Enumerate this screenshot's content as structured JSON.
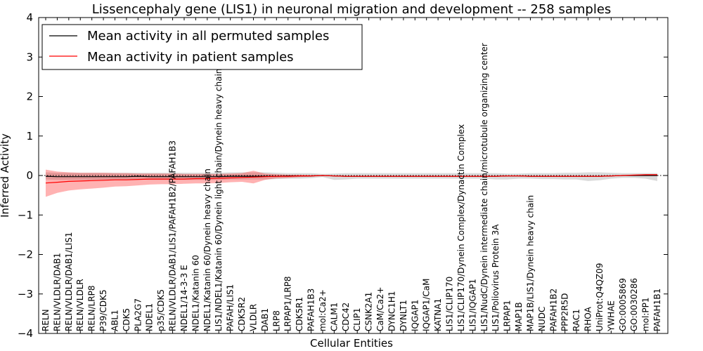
{
  "chart_data": {
    "type": "line",
    "title": "Lissencephaly gene (LIS1) in neuronal migration and development -- 258 samples",
    "xlabel": "Cellular Entities",
    "ylabel": "Inferred Activity",
    "ylim": [
      -4,
      4
    ],
    "yticks": [
      -4,
      -3,
      -2,
      -1,
      0,
      1,
      2,
      3,
      4
    ],
    "ytick_labels": [
      "−4",
      "−3",
      "−2",
      "−1",
      "0",
      "1",
      "2",
      "3",
      "4"
    ],
    "legend": {
      "position": "top-left",
      "entries": [
        {
          "label": "Mean activity in all permuted samples",
          "color": "#000000"
        },
        {
          "label": "Mean activity in patient samples",
          "color": "#ff0000"
        }
      ]
    },
    "categories": [
      "RELN",
      "RELN/VLDLR/DAB1",
      "RELN/VLDLR/DAB1/LIS1",
      "RELN/VLDLR",
      "RELN/LRP8",
      "P39/CDK5",
      "ABL1",
      "CDK5",
      "PLA2G7",
      "NDEL1",
      "p35/CDK5",
      "RELN/VLDLR/DAB1/LIS1/PAFAH1B2/PAFAH1B3",
      "NDEL1/14-3-3 E",
      "NDEL1/Katanin 60",
      "NDEL1/Katanin 60/Dynein heavy chain",
      "LIS1/NDEL1/Katanin 60/Dynein light chain/Dynein heavy chain",
      "PAFAH/LIS1",
      "CDK5R2",
      "VLDLR",
      "DAB1",
      "LRP8",
      "LRPAP1/LRP8",
      "CDK5R1",
      "PAFAH1B3",
      "mol:Ca2+",
      "CALM1",
      "CDC42",
      "CLIP1",
      "CSNK2A1",
      "CaM/Ca2+",
      "DYNC1H1",
      "DYNLT1",
      "IQGAP1",
      "IQGAP1/CaM",
      "KATNA1",
      "LIS1/CLIP170",
      "LIS1/CLIP170/Dynein Complex/Dynactin Complex",
      "LIS1/IQGAP1",
      "LIS1/NudC/Dynein intermediate chain/microtubule organizing center",
      "LIS1/Poliovirus Protein 3A",
      "LRPAP1",
      "MAP1B",
      "MAP1B/LIS1/Dynein heavy chain",
      "NUDC",
      "PAFAH1B2",
      "PPP2R5D",
      "RAC1",
      "RHOA",
      "UniProt:Q4QZ09",
      "YWHAE",
      "GO:0005869",
      "GO:0030286",
      "mol:PP1",
      "PAFAH1B1"
    ],
    "series": [
      {
        "name": "Mean activity in all permuted samples",
        "color": "#000000",
        "values": [
          -0.02,
          -0.03,
          -0.03,
          -0.03,
          -0.03,
          -0.03,
          -0.03,
          -0.03,
          -0.02,
          -0.03,
          -0.03,
          -0.03,
          -0.03,
          -0.03,
          -0.03,
          -0.03,
          -0.02,
          -0.02,
          -0.02,
          -0.02,
          -0.02,
          -0.01,
          -0.01,
          -0.01,
          0.0,
          -0.01,
          -0.02,
          -0.02,
          -0.02,
          -0.02,
          -0.02,
          -0.02,
          -0.02,
          -0.02,
          -0.02,
          -0.02,
          -0.02,
          -0.02,
          -0.02,
          -0.02,
          -0.01,
          -0.01,
          -0.02,
          -0.02,
          -0.02,
          -0.02,
          -0.02,
          -0.02,
          -0.02,
          -0.01,
          0.0,
          0.0,
          0.0,
          0.0
        ],
        "upper": [
          0.08,
          0.07,
          0.07,
          0.07,
          0.07,
          0.07,
          0.07,
          0.07,
          0.07,
          0.07,
          0.07,
          0.07,
          0.07,
          0.07,
          0.07,
          0.07,
          0.08,
          0.08,
          0.08,
          0.08,
          0.07,
          0.06,
          0.06,
          0.06,
          0.04,
          0.05,
          0.06,
          0.06,
          0.06,
          0.06,
          0.06,
          0.06,
          0.06,
          0.06,
          0.06,
          0.06,
          0.06,
          0.06,
          0.06,
          0.06,
          0.05,
          0.05,
          0.06,
          0.06,
          0.06,
          0.07,
          0.07,
          0.08,
          0.08,
          0.07,
          0.06,
          0.06,
          0.06,
          0.06
        ],
        "lower": [
          -0.1,
          -0.11,
          -0.11,
          -0.11,
          -0.11,
          -0.11,
          -0.11,
          -0.11,
          -0.1,
          -0.11,
          -0.11,
          -0.11,
          -0.11,
          -0.11,
          -0.11,
          -0.11,
          -0.1,
          -0.1,
          -0.1,
          -0.1,
          -0.09,
          -0.08,
          -0.08,
          -0.07,
          -0.04,
          -0.11,
          -0.1,
          -0.08,
          -0.08,
          -0.08,
          -0.08,
          -0.08,
          -0.08,
          -0.08,
          -0.08,
          -0.08,
          -0.08,
          -0.08,
          -0.08,
          -0.1,
          -0.1,
          -0.08,
          -0.08,
          -0.09,
          -0.09,
          -0.1,
          -0.1,
          -0.14,
          -0.12,
          -0.08,
          -0.06,
          -0.06,
          -0.08,
          -0.14
        ]
      },
      {
        "name": "Mean activity in patient samples",
        "color": "#ff0000",
        "values": [
          -0.19,
          -0.17,
          -0.15,
          -0.14,
          -0.13,
          -0.12,
          -0.11,
          -0.11,
          -0.1,
          -0.09,
          -0.09,
          -0.09,
          -0.09,
          -0.08,
          -0.08,
          -0.07,
          -0.06,
          -0.05,
          -0.04,
          -0.03,
          -0.02,
          -0.02,
          -0.01,
          -0.01,
          0.0,
          -0.01,
          -0.02,
          -0.02,
          -0.02,
          -0.02,
          -0.02,
          -0.02,
          -0.02,
          -0.02,
          -0.02,
          -0.02,
          -0.02,
          -0.02,
          -0.02,
          -0.02,
          -0.01,
          -0.01,
          -0.02,
          -0.02,
          -0.02,
          -0.02,
          -0.02,
          -0.02,
          -0.02,
          -0.01,
          0.0,
          0.01,
          0.02,
          0.02
        ],
        "upper": [
          0.15,
          0.1,
          0.08,
          0.07,
          0.07,
          0.07,
          0.06,
          0.06,
          0.05,
          0.05,
          0.05,
          0.05,
          0.04,
          0.04,
          0.04,
          0.04,
          0.05,
          0.06,
          0.12,
          0.05,
          0.03,
          0.02,
          0.02,
          0.01,
          0.01,
          0.0,
          -0.01,
          -0.01,
          -0.01,
          -0.01,
          -0.01,
          -0.01,
          -0.01,
          -0.01,
          -0.01,
          -0.01,
          -0.01,
          -0.01,
          -0.01,
          -0.01,
          0.0,
          0.0,
          -0.01,
          -0.01,
          -0.01,
          -0.01,
          -0.01,
          -0.01,
          -0.01,
          0.0,
          0.01,
          0.02,
          0.03,
          0.03
        ],
        "lower": [
          -0.54,
          -0.44,
          -0.38,
          -0.35,
          -0.33,
          -0.31,
          -0.28,
          -0.27,
          -0.25,
          -0.23,
          -0.22,
          -0.22,
          -0.21,
          -0.2,
          -0.2,
          -0.19,
          -0.17,
          -0.16,
          -0.2,
          -0.11,
          -0.07,
          -0.06,
          -0.04,
          -0.03,
          -0.01,
          -0.02,
          -0.03,
          -0.03,
          -0.03,
          -0.03,
          -0.03,
          -0.03,
          -0.03,
          -0.03,
          -0.03,
          -0.03,
          -0.03,
          -0.03,
          -0.03,
          -0.03,
          -0.02,
          -0.02,
          -0.03,
          -0.03,
          -0.03,
          -0.03,
          -0.03,
          -0.03,
          -0.03,
          -0.02,
          -0.01,
          0.0,
          0.01,
          0.01
        ]
      }
    ]
  }
}
